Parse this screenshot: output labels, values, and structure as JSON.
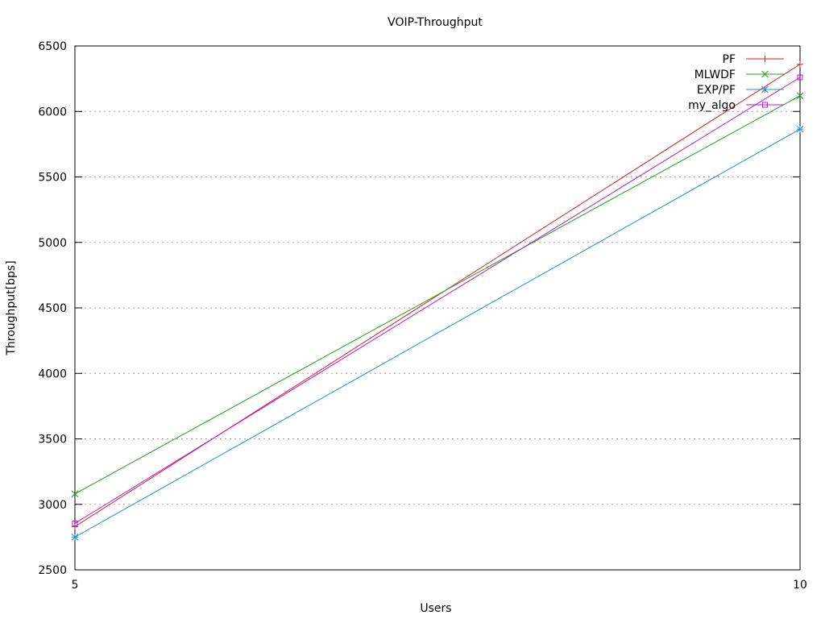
{
  "chart_data": {
    "type": "line",
    "title": "VOIP-Throughput",
    "xlabel": "Users",
    "ylabel": "Throughput[bps]",
    "x": [
      5,
      10
    ],
    "xlim": [
      5,
      10
    ],
    "ylim": [
      2500,
      6500
    ],
    "xticks": [
      5,
      10
    ],
    "yticks": [
      2500,
      3000,
      3500,
      4000,
      4500,
      5000,
      5500,
      6000,
      6500
    ],
    "grid": "horizontal dotted",
    "legend_position": "top-right",
    "series": [
      {
        "name": "PF",
        "color": "#e41a1c",
        "marker": "plus",
        "values": [
          2830,
          6360
        ]
      },
      {
        "name": "MLWDF",
        "color": "#1fa31f",
        "marker": "cross",
        "values": [
          3080,
          6120
        ]
      },
      {
        "name": "EXP/PF",
        "color": "#1f8fd8",
        "marker": "star",
        "values": [
          2750,
          5865
        ]
      },
      {
        "name": "my_algo",
        "color": "#b41ecf",
        "marker": "square",
        "values": [
          2855,
          6260
        ]
      }
    ]
  }
}
